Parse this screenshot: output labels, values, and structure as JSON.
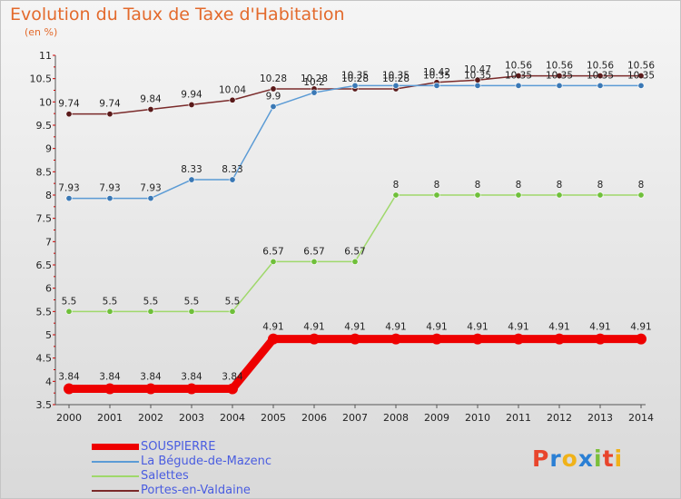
{
  "chart_title": "Evolution du Taux de Taxe d'Habitation",
  "chart_unit": "(en %)",
  "logo_text": "Proxiti",
  "logo_colors": [
    "#e8452c",
    "#2a7fd4",
    "#f0b219",
    "#2a7fd4",
    "#7bbf3a",
    "#e8452c",
    "#f0b219"
  ],
  "colors": {
    "title": "#e36a2c",
    "axis": "#555555",
    "grid_tick": "#cc0000",
    "label_text": "#222222"
  },
  "chart_data": {
    "type": "line",
    "title": "Evolution du Taux de Taxe d'Habitation",
    "ylabel": "(en %)",
    "xlabel": "",
    "x": [
      "2000",
      "2001",
      "2002",
      "2003",
      "2004",
      "2005",
      "2006",
      "2007",
      "2008",
      "2009",
      "2010",
      "2011",
      "2012",
      "2013",
      "2014"
    ],
    "ylim": [
      3.5,
      11
    ],
    "y_ticks": [
      3.5,
      4,
      4.5,
      5,
      5.5,
      6,
      6.5,
      7,
      7.5,
      8,
      8.5,
      9,
      9.5,
      10,
      10.5,
      11
    ],
    "y_tick_labels": [
      "3.5",
      "4",
      "4.5",
      "5",
      "5.5",
      "6",
      "6.5",
      "7",
      "7.5",
      "8",
      "8.5",
      "9",
      "9.5",
      "10",
      "10.5",
      "11"
    ],
    "legend_position": "bottom-left",
    "series": [
      {
        "name": "Portes-en-Valdaine",
        "color": "#7a2a2a",
        "marker_color": "#5a1a1a",
        "line_weight": "thin",
        "values": [
          9.74,
          9.74,
          9.84,
          9.94,
          10.04,
          10.28,
          10.28,
          10.28,
          10.28,
          10.42,
          10.47,
          10.56,
          10.56,
          10.56,
          10.56
        ],
        "labels": [
          "9.74",
          "9.74",
          "9.84",
          "9.94",
          "10.04",
          "10.28",
          "10.28",
          "10.28",
          "10.28",
          "10.42",
          "10.47",
          "10.56",
          "10.56",
          "10.56",
          "10.56"
        ]
      },
      {
        "name": "La Bégude-de-Mazenc",
        "color": "#5b9bd5",
        "marker_color": "#3a78b5",
        "line_weight": "thin",
        "values": [
          7.93,
          7.93,
          7.93,
          8.33,
          8.33,
          9.9,
          10.2,
          10.35,
          10.35,
          10.35,
          10.35,
          10.35,
          10.35,
          10.35,
          10.35
        ],
        "labels": [
          "7.93",
          "7.93",
          "7.93",
          "8.33",
          "8.33",
          "9.9",
          "10.2",
          "10.35",
          "10.35",
          "10.35",
          "10.35",
          "10.35",
          "10.35",
          "10.35",
          "10.35"
        ]
      },
      {
        "name": "Salettes",
        "color": "#9fd86b",
        "marker_color": "#6fbf3a",
        "line_weight": "thin",
        "values": [
          5.5,
          5.5,
          5.5,
          5.5,
          5.5,
          6.57,
          6.57,
          6.57,
          8,
          8,
          8,
          8,
          8,
          8,
          8
        ],
        "labels": [
          "5.5",
          "5.5",
          "5.5",
          "5.5",
          "5.5",
          "6.57",
          "6.57",
          "6.57",
          "8",
          "8",
          "8",
          "8",
          "8",
          "8",
          "8"
        ]
      },
      {
        "name": "SOUSPIERRE",
        "color": "#ee0000",
        "marker_color": "#ee0000",
        "line_weight": "thick",
        "values": [
          3.84,
          3.84,
          3.84,
          3.84,
          3.84,
          4.91,
          4.91,
          4.91,
          4.91,
          4.91,
          4.91,
          4.91,
          4.91,
          4.91,
          4.91
        ],
        "labels": [
          "3.84",
          "3.84",
          "3.84",
          "3.84",
          "3.84",
          "4.91",
          "4.91",
          "4.91",
          "4.91",
          "4.91",
          "4.91",
          "4.91",
          "4.91",
          "4.91",
          "4.91"
        ]
      }
    ]
  },
  "legend": [
    {
      "label": "SOUSPIERRE",
      "color": "#ee0000",
      "weight": "thick"
    },
    {
      "label": "La Bégude-de-Mazenc",
      "color": "#5b9bd5",
      "weight": "thin"
    },
    {
      "label": "Salettes",
      "color": "#9fd86b",
      "weight": "thin"
    },
    {
      "label": "Portes-en-Valdaine",
      "color": "#7a2a2a",
      "weight": "thin"
    }
  ]
}
